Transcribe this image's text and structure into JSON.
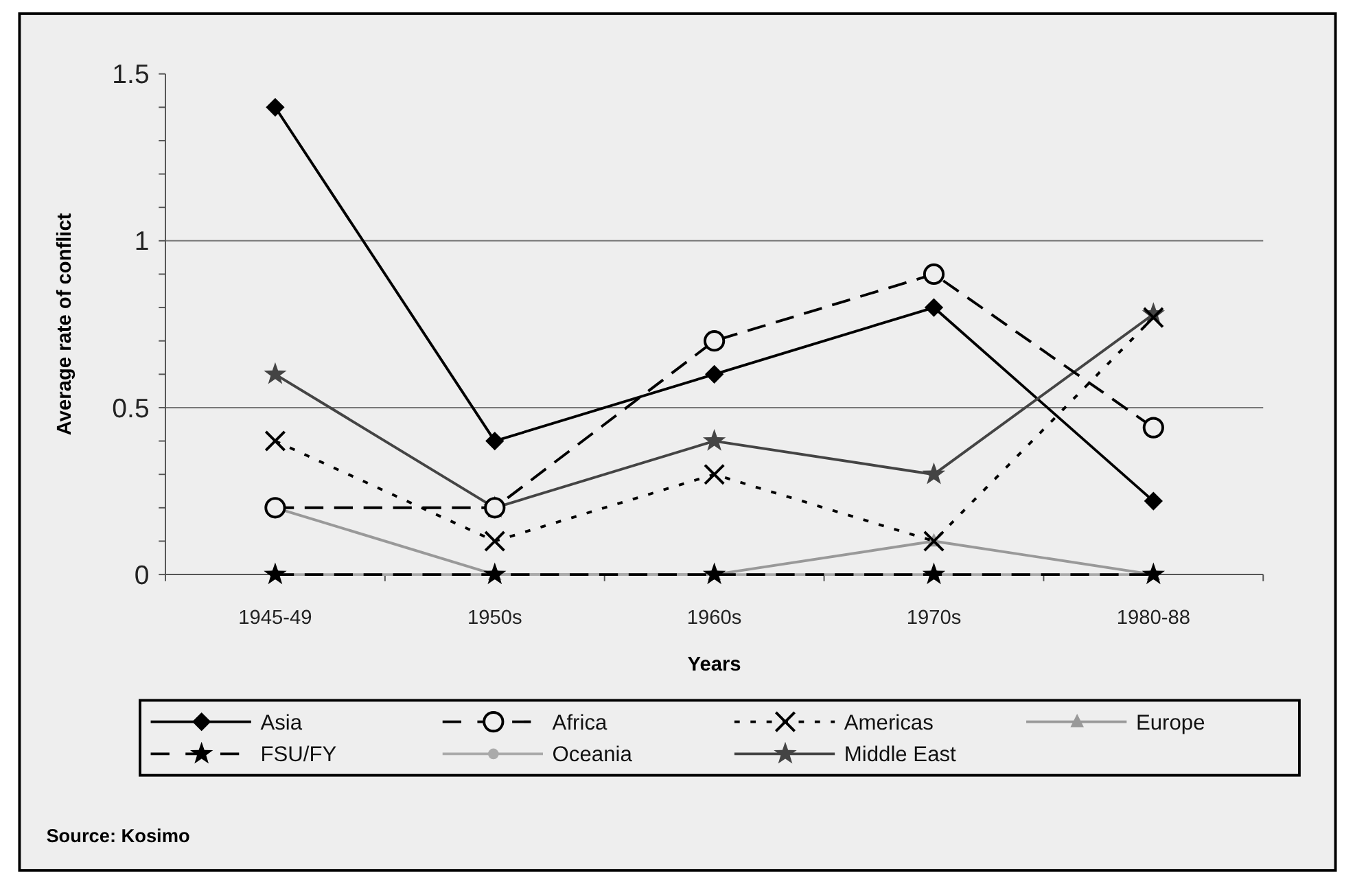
{
  "chart_data": {
    "type": "line",
    "xlabel": "Years",
    "ylabel": "Average rate of conflict",
    "categories": [
      "1945-49",
      "1950s",
      "1960s",
      "1970s",
      "1980-88"
    ],
    "series": [
      {
        "name": "Asia",
        "color": "#000000",
        "marker": "diamond",
        "line_style": "solid",
        "values": [
          1.4,
          0.4,
          0.6,
          0.8,
          0.22
        ]
      },
      {
        "name": "Africa",
        "color": "#000000",
        "marker": "circle",
        "line_style": "dashed",
        "values": [
          0.2,
          0.2,
          0.7,
          0.9,
          0.44
        ]
      },
      {
        "name": "Americas",
        "color": "#000000",
        "marker": "cross",
        "line_style": "dotted",
        "values": [
          0.4,
          0.1,
          0.3,
          0.1,
          0.77
        ]
      },
      {
        "name": "Europe",
        "color": "#999999",
        "marker": "triangle",
        "line_style": "solid",
        "values": [
          0.2,
          0,
          0,
          0.1,
          0
        ]
      },
      {
        "name": "FSU/FY",
        "color": "#000000",
        "marker": "star",
        "line_style": "dashed",
        "values": [
          0,
          0,
          0,
          0,
          0
        ]
      },
      {
        "name": "Oceania",
        "color": "#aaaaaa",
        "marker": "circle",
        "line_style": "solid",
        "values": [
          0,
          0,
          0,
          0,
          0
        ]
      },
      {
        "name": "Middle East",
        "color": "#444444",
        "marker": "star",
        "line_style": "solid",
        "values": [
          0.6,
          0.2,
          0.4,
          0.3,
          0.78
        ]
      }
    ],
    "ylim": [
      0,
      1.5
    ],
    "yticks": [
      0,
      {
        "value": 0.1,
        "label": null
      },
      {
        "value": 0.2,
        "label": null
      },
      {
        "value": 0.3,
        "label": null
      },
      {
        "value": 0.4,
        "label": null
      },
      {
        "value": 0.5,
        "label": "0.5"
      },
      {
        "value": 0.6,
        "label": null
      },
      {
        "value": 0.7,
        "label": null
      },
      {
        "value": 0.8,
        "label": null
      },
      {
        "value": 0.9,
        "label": null
      },
      1,
      {
        "value": 1.1,
        "label": null
      },
      {
        "value": 1.2,
        "label": null
      },
      {
        "value": 1.3,
        "label": null
      },
      {
        "value": 1.4,
        "label": null
      },
      1.5
    ],
    "grid": "y",
    "legend": "bottom",
    "annotations": [
      "Source: Kosimo"
    ]
  }
}
